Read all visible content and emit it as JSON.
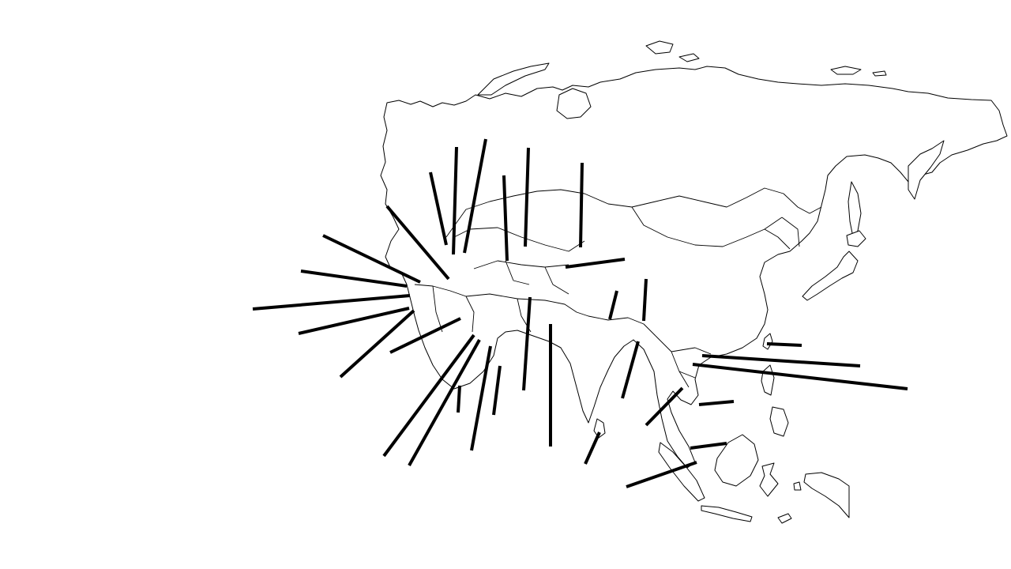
{
  "map": {
    "region": "Asia",
    "style": "blank outline map",
    "colors": {
      "background": "#ffffff",
      "outline": "#000000",
      "leader_line": "#000000"
    },
    "label_count": 33,
    "labels": []
  }
}
